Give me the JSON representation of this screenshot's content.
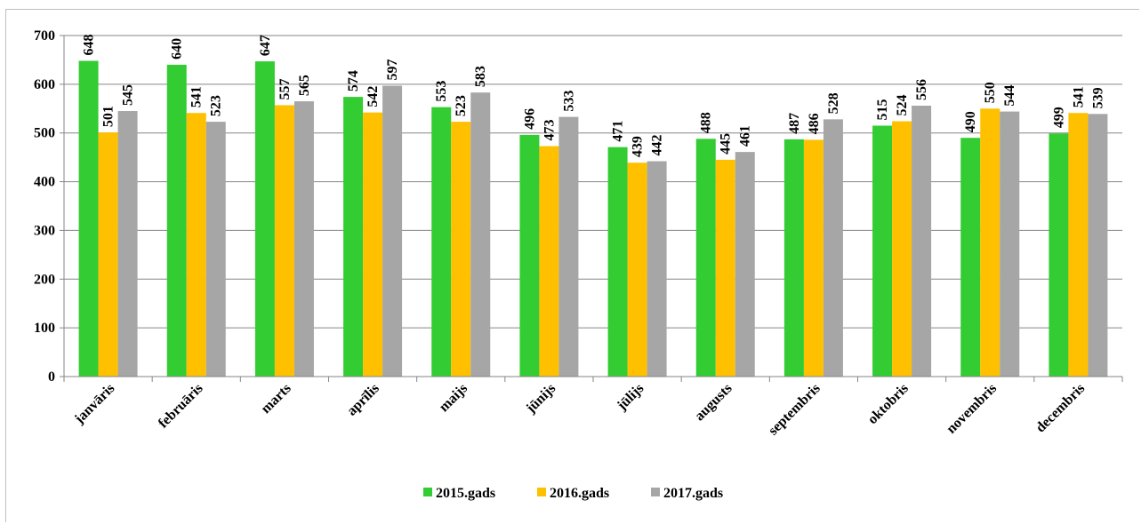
{
  "chart_data": {
    "type": "bar",
    "categories": [
      "janvāris",
      "februāris",
      "marts",
      "aprīlis",
      "maijs",
      "jūnijs",
      "jūlijs",
      "augusts",
      "septembris",
      "oktobris",
      "novembris",
      "decembris"
    ],
    "series": [
      {
        "name": "2015.gads",
        "color": "#33cc33",
        "values": [
          648,
          640,
          647,
          574,
          553,
          496,
          471,
          488,
          487,
          515,
          490,
          499
        ]
      },
      {
        "name": "2016.gads",
        "color": "#ffc000",
        "values": [
          501,
          541,
          557,
          542,
          523,
          473,
          439,
          445,
          486,
          524,
          550,
          541
        ]
      },
      {
        "name": "2017.gads",
        "color": "#a6a6a6",
        "values": [
          545,
          523,
          565,
          597,
          583,
          533,
          442,
          461,
          528,
          556,
          544,
          539
        ]
      }
    ],
    "yticks": [
      0,
      100,
      200,
      300,
      400,
      500,
      600,
      700
    ],
    "ylim": [
      0,
      700
    ],
    "grid": true,
    "legend": "bottom",
    "title": "",
    "xlabel": "",
    "ylabel": ""
  }
}
